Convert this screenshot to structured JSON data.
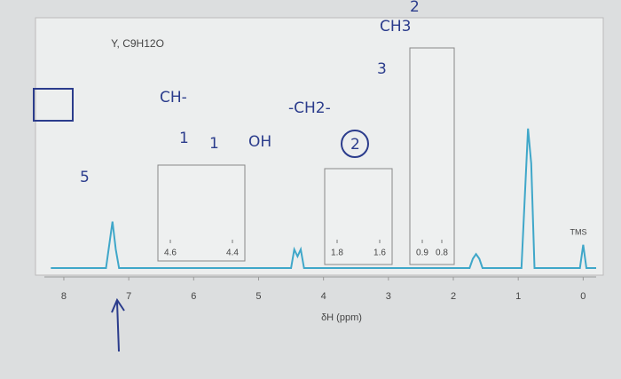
{
  "chart_data": {
    "type": "line",
    "title": "Y, C9H12O",
    "x_label": "δH (ppm)",
    "peak_label": "TMS",
    "x": [
      8.2,
      7.35,
      7.25,
      7.2,
      7.15,
      4.5,
      4.45,
      4.4,
      4.35,
      4.3,
      1.75,
      1.7,
      1.65,
      1.6,
      1.55,
      0.95,
      0.85,
      0.8,
      0.75,
      0.05,
      0,
      -0.05,
      -0.2
    ],
    "series": [
      {
        "color": "#3fa7c9",
        "values": [
          0,
          0,
          20,
          8,
          0,
          0,
          8,
          5,
          8,
          0,
          0,
          4,
          6,
          4,
          0,
          0,
          60,
          45,
          0,
          0,
          10,
          0,
          0
        ]
      }
    ],
    "xlim": [
      8.3,
      -0.2
    ],
    "ylim": [
      0,
      100
    ],
    "xticks": [
      8,
      7,
      6,
      5,
      4,
      3,
      2,
      1,
      0
    ],
    "insets": [
      {
        "xticks": [
          {
            "value": 4.6,
            "label": "4.6"
          },
          {
            "value": 4.4,
            "label": "4.4"
          }
        ]
      },
      {
        "xticks": [
          {
            "value": 1.8,
            "label": "1.8"
          },
          {
            "value": 1.6,
            "label": "1.6"
          }
        ]
      },
      {
        "xticks": [
          {
            "value": 0.9,
            "label": "0.9"
          },
          {
            "value": 0.8,
            "label": "0.8"
          }
        ]
      }
    ]
  },
  "annotations": [
    "5",
    "CH-",
    "1",
    "1",
    "OH",
    "-CH2-",
    "2",
    "3",
    "CH3",
    "2"
  ]
}
